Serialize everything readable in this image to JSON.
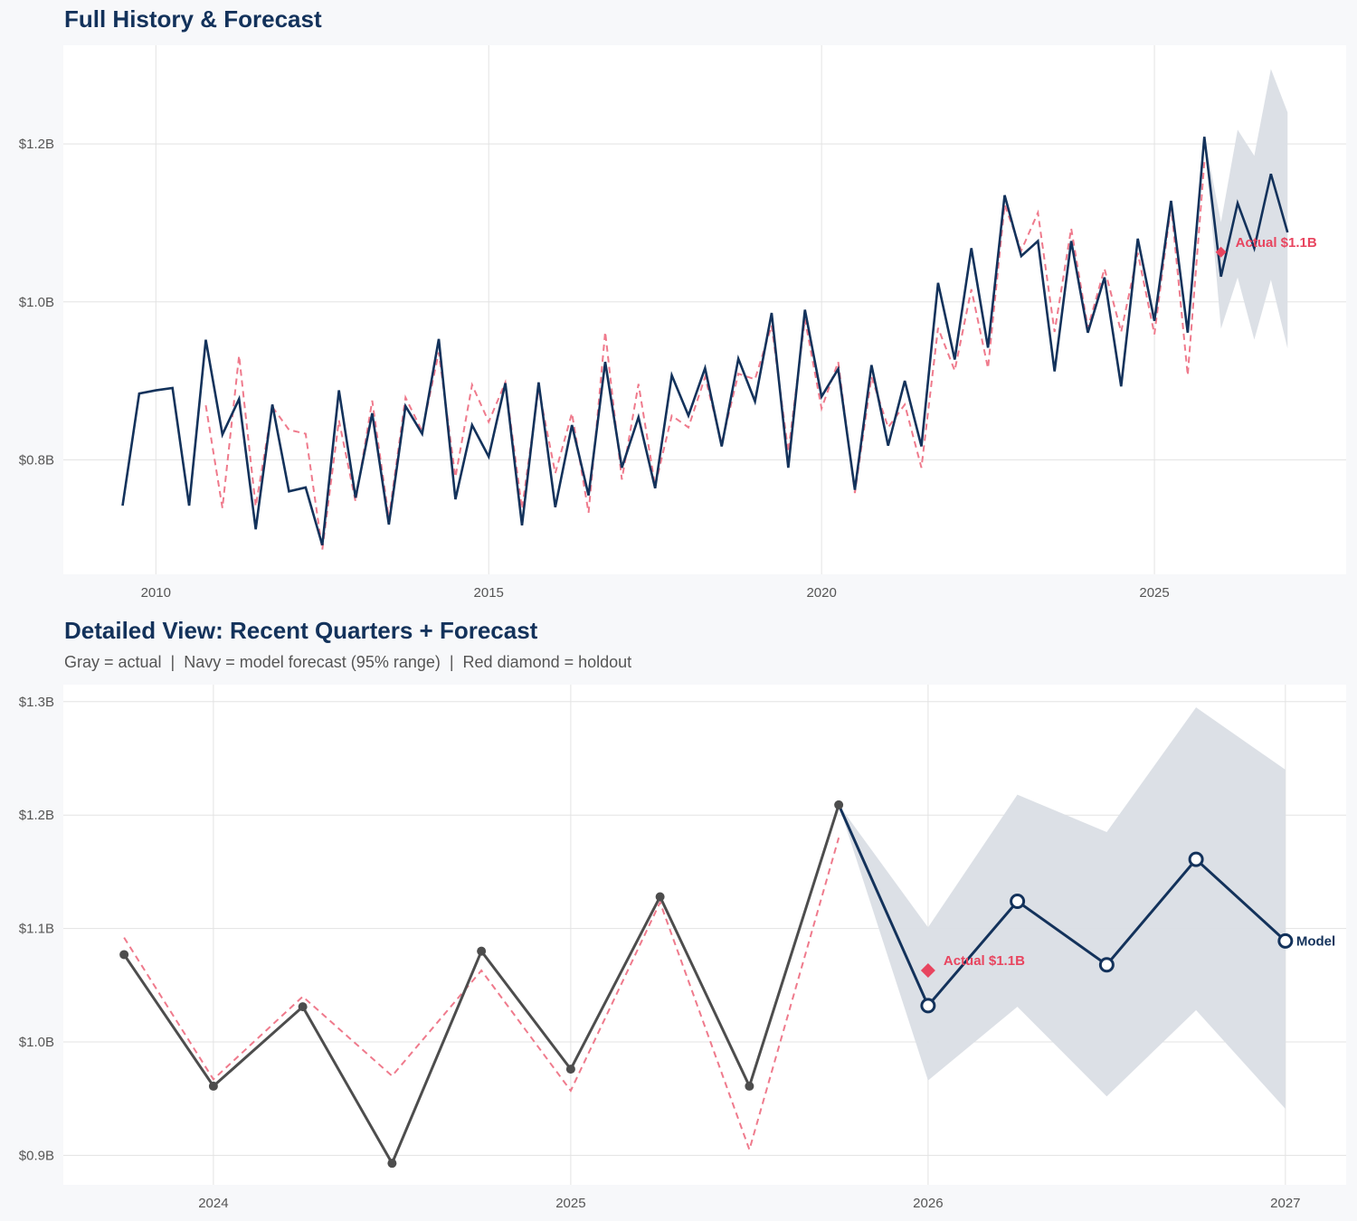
{
  "chart_data": [
    {
      "type": "line",
      "id": "top",
      "title": "Full History & Forecast",
      "subtitle": "",
      "xlabel": "",
      "ylabel": "",
      "xlim": [
        2008.61,
        2027.88
      ],
      "ylim": [
        0.655,
        1.325
      ],
      "grid": true,
      "xticks": [
        2010,
        2015,
        2020,
        2025
      ],
      "xtick_labels": [
        "2010",
        "2015",
        "2020",
        "2025"
      ],
      "yticks": [
        0.8,
        1.0,
        1.2
      ],
      "ytick_labels": [
        "$0.8B",
        "$1.0B",
        "$1.2B"
      ],
      "step": 0.25,
      "actual_start": 2009.5,
      "actual": [
        0.742,
        0.884,
        0.888,
        0.891,
        0.742,
        0.952,
        0.832,
        0.877,
        0.712,
        0.87,
        0.76,
        0.765,
        0.692,
        0.888,
        0.752,
        0.859,
        0.718,
        0.868,
        0.833,
        0.953,
        0.75,
        0.844,
        0.804,
        0.897,
        0.717,
        0.898,
        0.74,
        0.844,
        0.755,
        0.924,
        0.79,
        0.854,
        0.764,
        0.907,
        0.856,
        0.916,
        0.817,
        0.928,
        0.874,
        0.986,
        0.79,
        0.99,
        0.88,
        0.915,
        0.762,
        0.92,
        0.818,
        0.9,
        0.817,
        1.024,
        0.927,
        1.068,
        0.942,
        1.135,
        1.058,
        1.077,
        0.912,
        1.077,
        0.961,
        1.031,
        0.893,
        1.08,
        0.976,
        1.128,
        0.961,
        1.209
      ],
      "fitted_start": 2010.75,
      "fitted": [
        0.869,
        0.739,
        0.932,
        0.741,
        0.867,
        0.838,
        0.833,
        0.686,
        0.85,
        0.747,
        0.875,
        0.726,
        0.879,
        0.836,
        0.936,
        0.778,
        0.895,
        0.848,
        0.898,
        0.738,
        0.89,
        0.783,
        0.859,
        0.733,
        0.962,
        0.775,
        0.896,
        0.767,
        0.856,
        0.841,
        0.905,
        0.821,
        0.909,
        0.902,
        0.97,
        0.81,
        0.978,
        0.865,
        0.924,
        0.758,
        0.905,
        0.841,
        0.87,
        0.79,
        0.967,
        0.913,
        1.016,
        0.916,
        1.123,
        1.065,
        1.113,
        0.962,
        1.093,
        0.967,
        1.042,
        0.962,
        1.062,
        0.959,
        1.123,
        0.907,
        1.177
      ],
      "forecast_start": 2025.75,
      "forecast": [
        1.209,
        1.032,
        1.125,
        1.068,
        1.162,
        1.088
      ],
      "band_upper": [
        1.209,
        1.101,
        1.218,
        1.185,
        1.295,
        1.24
      ],
      "band_lower": [
        1.209,
        0.966,
        1.031,
        0.952,
        1.028,
        0.941
      ],
      "holdout": {
        "x": 2026.0,
        "value": 1.063,
        "label": "Actual $1.1B"
      },
      "forecast_label": "",
      "actual_color": "#13325b",
      "show_markers": false
    },
    {
      "type": "line",
      "id": "bottom",
      "title": "Detailed View: Recent Quarters + Forecast",
      "subtitle": "Gray = actual  |  Navy = model forecast (95% range)  |  Red diamond = holdout",
      "xlabel": "",
      "ylabel": "",
      "xlim": [
        2023.58,
        2027.17
      ],
      "ylim": [
        0.874,
        1.315
      ],
      "grid": true,
      "xticks": [
        2024,
        2025,
        2026,
        2027
      ],
      "xtick_labels": [
        "2024",
        "2025",
        "2026",
        "2027"
      ],
      "yticks": [
        0.9,
        1.0,
        1.1,
        1.2,
        1.3
      ],
      "ytick_labels": [
        "$0.9B",
        "$1.0B",
        "$1.1B",
        "$1.2B",
        "$1.3B"
      ],
      "step": 0.25,
      "actual_start": 2023.75,
      "actual": [
        1.077,
        0.961,
        1.031,
        0.893,
        1.08,
        0.976,
        1.128,
        0.961,
        1.209
      ],
      "fitted_start": 2023.75,
      "fitted": [
        1.092,
        0.967,
        1.04,
        0.97,
        1.063,
        0.957,
        1.123,
        0.905,
        1.18
      ],
      "forecast_start": 2025.75,
      "forecast": [
        1.209,
        1.032,
        1.124,
        1.068,
        1.161,
        1.089
      ],
      "band_upper": [
        1.209,
        1.101,
        1.218,
        1.185,
        1.295,
        1.24
      ],
      "band_lower": [
        1.209,
        0.966,
        1.031,
        0.952,
        1.028,
        0.941
      ],
      "holdout": {
        "x": 2026.0,
        "value": 1.063,
        "label": "Actual $1.1B"
      },
      "forecast_label": "Model",
      "actual_color": "#4d4d4d",
      "show_markers": true
    }
  ],
  "colors": {
    "navy": "#13325b",
    "red": "#e8455f",
    "fitted": "#ef7a8c",
    "band": "#dadee5",
    "gray": "#4d4d4d",
    "grid": "#e3e3e3"
  }
}
